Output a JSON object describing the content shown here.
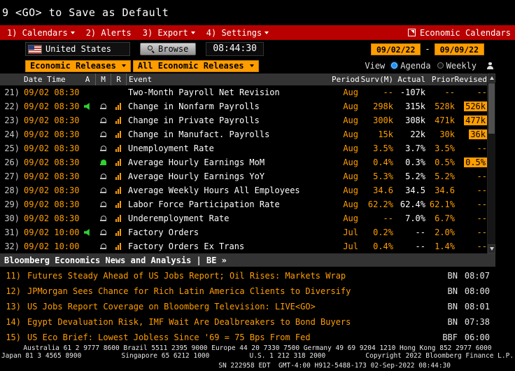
{
  "colors": {
    "amber": "#ff9d00",
    "menu_red": "#b80000",
    "header_gray": "#333333",
    "actual_white": "#ffffff",
    "radio_blue": "#1e90ff",
    "alert_green": "#2fd12f"
  },
  "hint_bar": {
    "text": "9 <GO> to Save as Default"
  },
  "menu_bar": {
    "items": [
      {
        "label": "1) Calendars",
        "dropdown": true
      },
      {
        "label": "2) Alerts",
        "dropdown": false
      },
      {
        "label": "3) Export",
        "dropdown": true
      },
      {
        "label": "4) Settings",
        "dropdown": true
      }
    ],
    "right_label": "Economic Calendars"
  },
  "controls": {
    "country": "United States",
    "browse": "Browse",
    "clock": "08:44:30",
    "date_from": "09/02/22",
    "date_separator": "-",
    "date_to": "09/09/22",
    "category_filter": "Economic Releases",
    "release_filter": "All Economic Releases",
    "view_label": "View",
    "view_options": [
      {
        "label": "Agenda",
        "selected": true
      },
      {
        "label": "Weekly",
        "selected": false
      }
    ]
  },
  "table": {
    "headers": {
      "datetime": "Date Time",
      "a": "A",
      "m": "M",
      "r": "R",
      "event": "Event",
      "period": "Period",
      "surv": "Surv(M)",
      "actual": "Actual",
      "prior": "Prior",
      "revised": "Revised"
    },
    "rows": [
      {
        "num": "21)",
        "datetime": "09/02 08:30",
        "speaker": false,
        "bell": "none",
        "chart": false,
        "event": "Two-Month Payroll Net Revision",
        "period": "Aug",
        "surv": "--",
        "actual": "-107k",
        "prior": "--",
        "revised": "--",
        "revised_highlight": false
      },
      {
        "num": "22)",
        "datetime": "09/02 08:30",
        "speaker": true,
        "bell": "gray",
        "chart": true,
        "event": "Change in Nonfarm Payrolls",
        "period": "Aug",
        "surv": "298k",
        "actual": "315k",
        "prior": "528k",
        "revised": "526k",
        "revised_highlight": true
      },
      {
        "num": "23)",
        "datetime": "09/02 08:30",
        "speaker": false,
        "bell": "gray",
        "chart": true,
        "event": "Change in Private Payrolls",
        "period": "Aug",
        "surv": "300k",
        "actual": "308k",
        "prior": "471k",
        "revised": "477k",
        "revised_highlight": true
      },
      {
        "num": "24)",
        "datetime": "09/02 08:30",
        "speaker": false,
        "bell": "gray",
        "chart": true,
        "event": "Change in Manufact. Payrolls",
        "period": "Aug",
        "surv": "15k",
        "actual": "22k",
        "prior": "30k",
        "revised": "36k",
        "revised_highlight": true
      },
      {
        "num": "25)",
        "datetime": "09/02 08:30",
        "speaker": false,
        "bell": "gray",
        "chart": true,
        "event": "Unemployment Rate",
        "period": "Aug",
        "surv": "3.5%",
        "actual": "3.7%",
        "prior": "3.5%",
        "revised": "--",
        "revised_highlight": false
      },
      {
        "num": "26)",
        "datetime": "09/02 08:30",
        "speaker": false,
        "bell": "green",
        "chart": true,
        "event": "Average Hourly Earnings MoM",
        "period": "Aug",
        "surv": "0.4%",
        "actual": "0.3%",
        "prior": "0.5%",
        "revised": "0.5%",
        "revised_highlight": true
      },
      {
        "num": "27)",
        "datetime": "09/02 08:30",
        "speaker": false,
        "bell": "gray",
        "chart": true,
        "event": "Average Hourly Earnings YoY",
        "period": "Aug",
        "surv": "5.3%",
        "actual": "5.2%",
        "prior": "5.2%",
        "revised": "--",
        "revised_highlight": false
      },
      {
        "num": "28)",
        "datetime": "09/02 08:30",
        "speaker": false,
        "bell": "gray",
        "chart": true,
        "event": "Average Weekly Hours All Employees",
        "period": "Aug",
        "surv": "34.6",
        "actual": "34.5",
        "prior": "34.6",
        "revised": "--",
        "revised_highlight": false
      },
      {
        "num": "29)",
        "datetime": "09/02 08:30",
        "speaker": false,
        "bell": "gray",
        "chart": true,
        "event": "Labor Force Participation Rate",
        "period": "Aug",
        "surv": "62.2%",
        "actual": "62.4%",
        "prior": "62.1%",
        "revised": "--",
        "revised_highlight": false
      },
      {
        "num": "30)",
        "datetime": "09/02 08:30",
        "speaker": false,
        "bell": "gray",
        "chart": true,
        "event": "Underemployment Rate",
        "period": "Aug",
        "surv": "--",
        "actual": "7.0%",
        "prior": "6.7%",
        "revised": "--",
        "revised_highlight": false
      },
      {
        "num": "31)",
        "datetime": "09/02 10:00",
        "speaker": true,
        "bell": "gray",
        "chart": true,
        "event": "Factory Orders",
        "period": "Jul",
        "surv": "0.2%",
        "actual": "--",
        "prior": "2.0%",
        "revised": "--",
        "revised_highlight": false
      },
      {
        "num": "32)",
        "datetime": "09/02 10:00",
        "speaker": false,
        "bell": "gray",
        "chart": true,
        "event": "Factory Orders Ex Trans",
        "period": "Jul",
        "surv": "0.4%",
        "actual": "--",
        "prior": "1.4%",
        "revised": "--",
        "revised_highlight": false
      }
    ]
  },
  "news": {
    "header": "Bloomberg Economics News and Analysis | BE »",
    "items": [
      {
        "num": "11)",
        "headline": "Futures Steady Ahead of US Jobs Report; Oil Rises: Markets Wrap",
        "source": "BN",
        "time": "08:07"
      },
      {
        "num": "12)",
        "headline": "JPMorgan Sees Chance for Rich Latin America Clients to Diversify",
        "source": "BN",
        "time": "08:00"
      },
      {
        "num": "13)",
        "headline": "US Jobs Report Coverage on Bloomberg Television: LIVE<GO>",
        "source": "BN",
        "time": "08:01"
      },
      {
        "num": "14)",
        "headline": "Egypt Devaluation Risk, IMF Wait Are Dealbreakers to Bond Buyers",
        "source": "BN",
        "time": "07:38"
      },
      {
        "num": "15)",
        "headline": "US Eco Brief: Lowest Jobless Since '69 = 75 Bps From Fed",
        "source": "BBF",
        "time": "06:00"
      }
    ]
  },
  "footer": {
    "line1": "Australia 61 2 9777 8600 Brazil 5511 2395 9000 Europe 44 20 7330 7500 Germany 49 69 9204 1210 Hong Kong 852 2977 6000",
    "line2": "Japan 81 3 4565 8900          Singapore 65 6212 1000          U.S. 1 212 318 2000          Copyright 2022 Bloomberg Finance L.P.",
    "line3": "SN 222958 EDT  GMT-4:00 H912-5488-173 02-Sep-2022 08:44:30"
  }
}
